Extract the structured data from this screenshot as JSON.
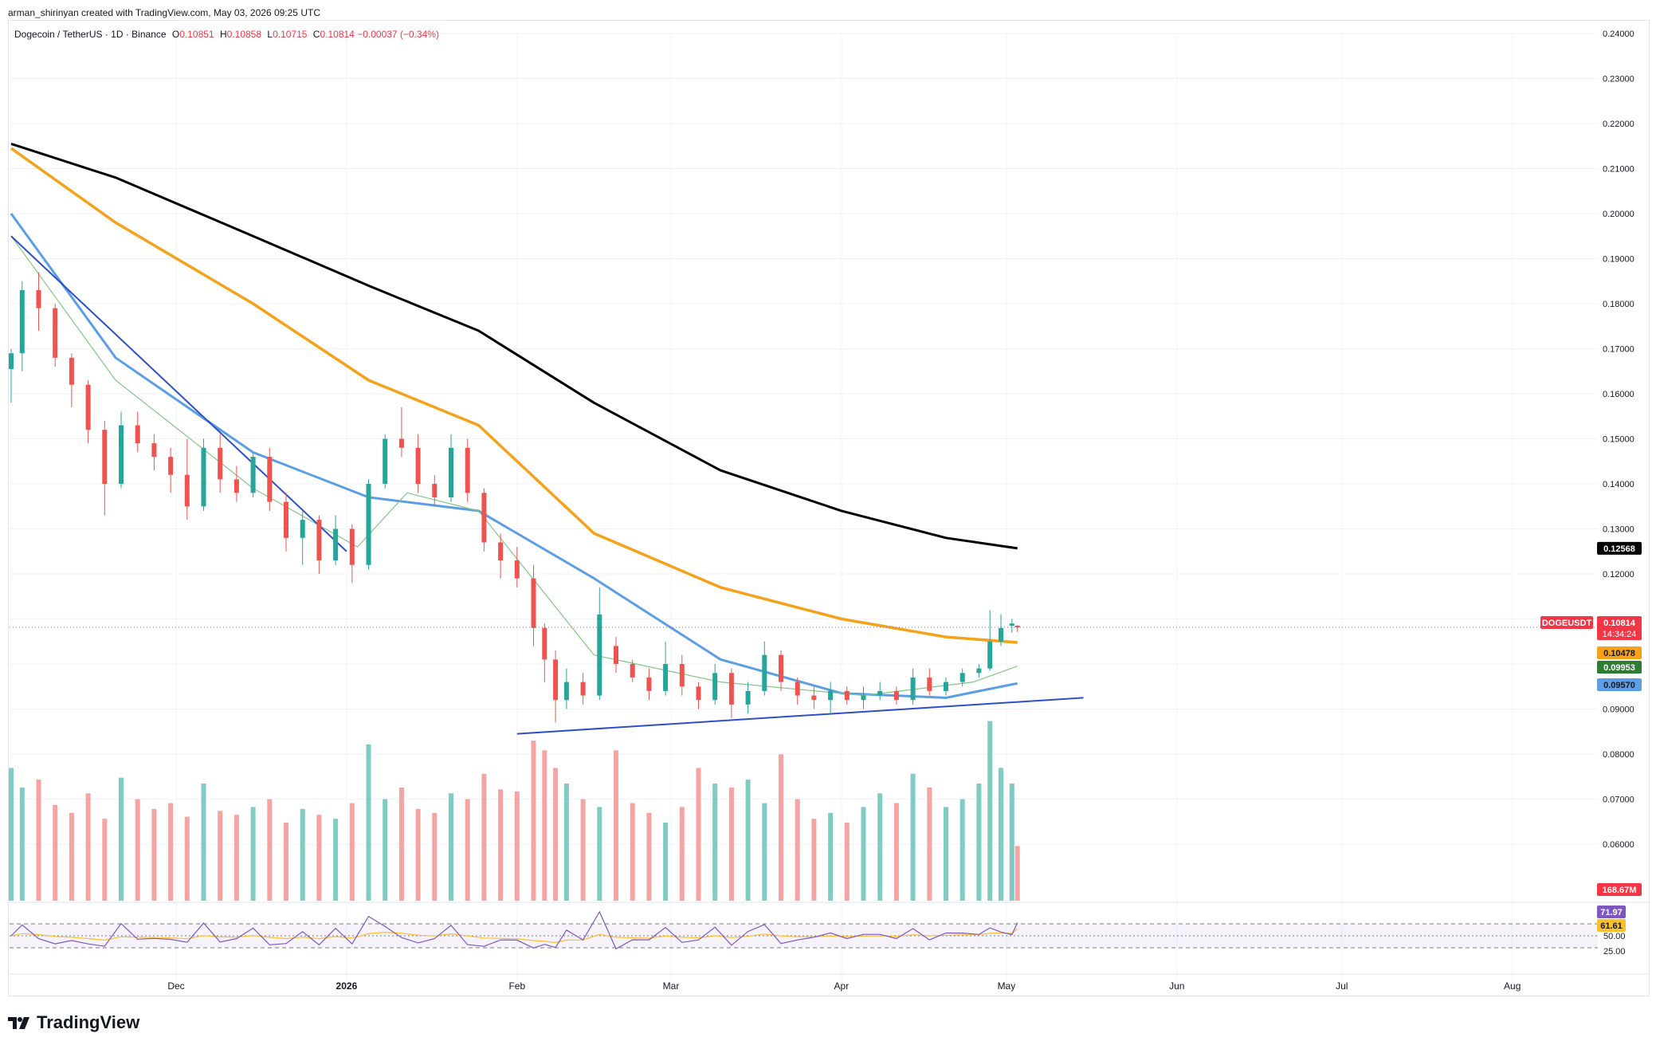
{
  "caption": "arman_shirinyan created with TradingView.com, May 03, 2026 09:25 UTC",
  "legend": {
    "symbol": "Dogecoin / TetherUS · 1D · Binance",
    "o_key": "O",
    "o_val": "0.10851",
    "h_key": "H",
    "h_val": "0.10858",
    "l_key": "L",
    "l_val": "0.10715",
    "c_key": "C",
    "c_val": "0.10814",
    "change": "−0.00037 (−0.34%)"
  },
  "brand": "TradingView",
  "price_axis": {
    "ticks": [
      "0.24000",
      "0.23000",
      "0.22000",
      "0.21000",
      "0.20000",
      "0.19000",
      "0.18000",
      "0.17000",
      "0.16000",
      "0.15000",
      "0.14000",
      "0.13000",
      "0.12000",
      "0.11000",
      "0.10000",
      "0.09000",
      "0.08000",
      "0.07000",
      "0.06000"
    ]
  },
  "price_labels": {
    "ma200": "0.12568",
    "symbol_tag": "DOGEUSDT",
    "last": "0.10814",
    "countdown": "14:34:24",
    "ma100": "0.10478",
    "ma20": "0.09953",
    "ma50": "0.09570",
    "volume": "168.67M"
  },
  "rsi_axis": {
    "ticks": [
      "50.00",
      "25.00"
    ],
    "rsi_value": "71.97",
    "rsi_ma_value": "61.61"
  },
  "time_axis": [
    "Dec",
    "2026",
    "Feb",
    "Mar",
    "Apr",
    "May",
    "Jun",
    "Jul",
    "Aug"
  ],
  "colors": {
    "up": "#26a69a",
    "down": "#ef5350",
    "up_vol": "#80cbc4",
    "down_vol": "#f5a3a3",
    "ma200": "#000000",
    "ma100": "#f5a11a",
    "ma50": "#5b9ee6",
    "ma20": "#81c784",
    "trendline": "#2f4fc8",
    "rsi": "#7e57c2",
    "rsi_ma": "#fbc02d",
    "last_price": "#f23645"
  },
  "chart_data": {
    "type": "candlestick",
    "title": "Dogecoin / TetherUS · 1D · Binance",
    "ylim": [
      0.055,
      0.245
    ],
    "candles": [
      {
        "date": "2025-11-01",
        "o": 0.1655,
        "h": 0.17,
        "l": 0.158,
        "c": 0.169
      },
      {
        "date": "2025-11-03",
        "o": 0.169,
        "h": 0.185,
        "l": 0.165,
        "c": 0.183
      },
      {
        "date": "2025-11-06",
        "o": 0.183,
        "h": 0.187,
        "l": 0.174,
        "c": 0.179
      },
      {
        "date": "2025-11-09",
        "o": 0.179,
        "h": 0.18,
        "l": 0.166,
        "c": 0.168
      },
      {
        "date": "2025-11-12",
        "o": 0.168,
        "h": 0.169,
        "l": 0.157,
        "c": 0.162
      },
      {
        "date": "2025-11-15",
        "o": 0.162,
        "h": 0.163,
        "l": 0.149,
        "c": 0.152
      },
      {
        "date": "2025-11-18",
        "o": 0.152,
        "h": 0.154,
        "l": 0.133,
        "c": 0.14
      },
      {
        "date": "2025-11-21",
        "o": 0.14,
        "h": 0.156,
        "l": 0.139,
        "c": 0.153
      },
      {
        "date": "2025-11-24",
        "o": 0.153,
        "h": 0.156,
        "l": 0.147,
        "c": 0.149
      },
      {
        "date": "2025-11-27",
        "o": 0.149,
        "h": 0.151,
        "l": 0.143,
        "c": 0.146
      },
      {
        "date": "2025-11-30",
        "o": 0.146,
        "h": 0.148,
        "l": 0.138,
        "c": 0.142
      },
      {
        "date": "2025-12-03",
        "o": 0.142,
        "h": 0.15,
        "l": 0.132,
        "c": 0.135
      },
      {
        "date": "2025-12-06",
        "o": 0.135,
        "h": 0.15,
        "l": 0.134,
        "c": 0.148
      },
      {
        "date": "2025-12-09",
        "o": 0.148,
        "h": 0.151,
        "l": 0.138,
        "c": 0.141
      },
      {
        "date": "2025-12-12",
        "o": 0.141,
        "h": 0.144,
        "l": 0.136,
        "c": 0.138
      },
      {
        "date": "2025-12-15",
        "o": 0.138,
        "h": 0.147,
        "l": 0.137,
        "c": 0.146
      },
      {
        "date": "2025-12-18",
        "o": 0.146,
        "h": 0.148,
        "l": 0.134,
        "c": 0.136
      },
      {
        "date": "2025-12-21",
        "o": 0.136,
        "h": 0.138,
        "l": 0.125,
        "c": 0.128
      },
      {
        "date": "2025-12-24",
        "o": 0.128,
        "h": 0.134,
        "l": 0.122,
        "c": 0.132
      },
      {
        "date": "2025-12-27",
        "o": 0.132,
        "h": 0.133,
        "l": 0.12,
        "c": 0.123
      },
      {
        "date": "2025-12-30",
        "o": 0.123,
        "h": 0.133,
        "l": 0.122,
        "c": 0.13
      },
      {
        "date": "2026-01-02",
        "o": 0.13,
        "h": 0.131,
        "l": 0.118,
        "c": 0.122
      },
      {
        "date": "2026-01-05",
        "o": 0.122,
        "h": 0.141,
        "l": 0.121,
        "c": 0.14
      },
      {
        "date": "2026-01-08",
        "o": 0.14,
        "h": 0.151,
        "l": 0.139,
        "c": 0.15
      },
      {
        "date": "2026-01-11",
        "o": 0.15,
        "h": 0.157,
        "l": 0.146,
        "c": 0.148
      },
      {
        "date": "2026-01-14",
        "o": 0.148,
        "h": 0.151,
        "l": 0.138,
        "c": 0.14
      },
      {
        "date": "2026-01-17",
        "o": 0.14,
        "h": 0.142,
        "l": 0.135,
        "c": 0.137
      },
      {
        "date": "2026-01-20",
        "o": 0.137,
        "h": 0.151,
        "l": 0.136,
        "c": 0.148
      },
      {
        "date": "2026-01-23",
        "o": 0.148,
        "h": 0.15,
        "l": 0.136,
        "c": 0.138
      },
      {
        "date": "2026-01-26",
        "o": 0.138,
        "h": 0.139,
        "l": 0.125,
        "c": 0.127
      },
      {
        "date": "2026-01-29",
        "o": 0.127,
        "h": 0.129,
        "l": 0.119,
        "c": 0.123
      },
      {
        "date": "2026-02-01",
        "o": 0.123,
        "h": 0.126,
        "l": 0.117,
        "c": 0.119
      },
      {
        "date": "2026-02-04",
        "o": 0.119,
        "h": 0.122,
        "l": 0.104,
        "c": 0.108
      },
      {
        "date": "2026-02-06",
        "o": 0.108,
        "h": 0.109,
        "l": 0.096,
        "c": 0.101
      },
      {
        "date": "2026-02-08",
        "o": 0.101,
        "h": 0.103,
        "l": 0.087,
        "c": 0.092
      },
      {
        "date": "2026-02-10",
        "o": 0.092,
        "h": 0.099,
        "l": 0.09,
        "c": 0.096
      },
      {
        "date": "2026-02-13",
        "o": 0.096,
        "h": 0.098,
        "l": 0.091,
        "c": 0.093
      },
      {
        "date": "2026-02-16",
        "o": 0.093,
        "h": 0.117,
        "l": 0.092,
        "c": 0.111
      },
      {
        "date": "2026-02-19",
        "o": 0.104,
        "h": 0.106,
        "l": 0.098,
        "c": 0.1
      },
      {
        "date": "2026-02-22",
        "o": 0.1,
        "h": 0.101,
        "l": 0.096,
        "c": 0.097
      },
      {
        "date": "2026-02-25",
        "o": 0.097,
        "h": 0.099,
        "l": 0.092,
        "c": 0.094
      },
      {
        "date": "2026-02-28",
        "o": 0.094,
        "h": 0.105,
        "l": 0.093,
        "c": 0.1
      },
      {
        "date": "2026-03-03",
        "o": 0.1,
        "h": 0.102,
        "l": 0.093,
        "c": 0.095
      },
      {
        "date": "2026-03-06",
        "o": 0.095,
        "h": 0.096,
        "l": 0.09,
        "c": 0.092
      },
      {
        "date": "2026-03-09",
        "o": 0.092,
        "h": 0.1,
        "l": 0.091,
        "c": 0.098
      },
      {
        "date": "2026-03-12",
        "o": 0.098,
        "h": 0.099,
        "l": 0.088,
        "c": 0.091
      },
      {
        "date": "2026-03-15",
        "o": 0.091,
        "h": 0.096,
        "l": 0.089,
        "c": 0.094
      },
      {
        "date": "2026-03-18",
        "o": 0.094,
        "h": 0.105,
        "l": 0.093,
        "c": 0.102
      },
      {
        "date": "2026-03-21",
        "o": 0.102,
        "h": 0.103,
        "l": 0.094,
        "c": 0.096
      },
      {
        "date": "2026-03-24",
        "o": 0.096,
        "h": 0.097,
        "l": 0.091,
        "c": 0.093
      },
      {
        "date": "2026-03-27",
        "o": 0.093,
        "h": 0.095,
        "l": 0.09,
        "c": 0.092
      },
      {
        "date": "2026-03-30",
        "o": 0.092,
        "h": 0.096,
        "l": 0.089,
        "c": 0.094
      },
      {
        "date": "2026-04-02",
        "o": 0.094,
        "h": 0.095,
        "l": 0.091,
        "c": 0.092
      },
      {
        "date": "2026-04-05",
        "o": 0.092,
        "h": 0.095,
        "l": 0.09,
        "c": 0.093
      },
      {
        "date": "2026-04-08",
        "o": 0.093,
        "h": 0.096,
        "l": 0.092,
        "c": 0.094
      },
      {
        "date": "2026-04-11",
        "o": 0.094,
        "h": 0.095,
        "l": 0.091,
        "c": 0.092
      },
      {
        "date": "2026-04-14",
        "o": 0.092,
        "h": 0.099,
        "l": 0.091,
        "c": 0.097
      },
      {
        "date": "2026-04-17",
        "o": 0.097,
        "h": 0.099,
        "l": 0.093,
        "c": 0.094
      },
      {
        "date": "2026-04-20",
        "o": 0.094,
        "h": 0.097,
        "l": 0.093,
        "c": 0.096
      },
      {
        "date": "2026-04-23",
        "o": 0.096,
        "h": 0.099,
        "l": 0.095,
        "c": 0.098
      },
      {
        "date": "2026-04-26",
        "o": 0.098,
        "h": 0.1,
        "l": 0.097,
        "c": 0.099
      },
      {
        "date": "2026-04-28",
        "o": 0.099,
        "h": 0.112,
        "l": 0.0985,
        "c": 0.105
      },
      {
        "date": "2026-04-30",
        "o": 0.105,
        "h": 0.111,
        "l": 0.104,
        "c": 0.108
      },
      {
        "date": "2026-05-02",
        "o": 0.1085,
        "h": 0.11,
        "l": 0.107,
        "c": 0.109
      },
      {
        "date": "2026-05-03",
        "o": 0.10851,
        "h": 0.10858,
        "l": 0.10715,
        "c": 0.10814
      }
    ],
    "volume_last": 168.67,
    "volume": [
      68,
      58,
      62,
      49,
      45,
      55,
      42,
      63,
      52,
      47,
      50,
      43,
      60,
      46,
      44,
      48,
      52,
      40,
      47,
      44,
      42,
      50,
      80,
      52,
      58,
      47,
      45,
      55,
      52,
      65,
      57,
      56,
      82,
      77,
      68,
      60,
      52,
      48,
      77,
      50,
      45,
      40,
      48,
      68,
      60,
      58,
      62,
      50,
      75,
      52,
      42,
      45,
      40,
      48,
      55,
      50,
      65,
      58,
      48,
      52,
      60,
      92,
      68,
      60,
      28
    ],
    "ma_series": [
      {
        "name": "MA 200",
        "value": 0.12568,
        "points": [
          [
            "2025-11-01",
            0.2155
          ],
          [
            "2025-11-20",
            0.208
          ],
          [
            "2025-12-15",
            0.195
          ],
          [
            "2026-01-05",
            0.184
          ],
          [
            "2026-01-25",
            0.174
          ],
          [
            "2026-02-15",
            0.158
          ],
          [
            "2026-03-10",
            0.143
          ],
          [
            "2026-04-01",
            0.134
          ],
          [
            "2026-04-20",
            0.128
          ],
          [
            "2026-05-03",
            0.12568
          ]
        ]
      },
      {
        "name": "MA 100",
        "value": 0.10478,
        "points": [
          [
            "2025-11-01",
            0.2145
          ],
          [
            "2025-11-20",
            0.198
          ],
          [
            "2025-12-15",
            0.18
          ],
          [
            "2026-01-05",
            0.163
          ],
          [
            "2026-01-25",
            0.153
          ],
          [
            "2026-02-15",
            0.129
          ],
          [
            "2026-03-10",
            0.117
          ],
          [
            "2026-04-01",
            0.11
          ],
          [
            "2026-04-20",
            0.106
          ],
          [
            "2026-05-03",
            0.10478
          ]
        ]
      },
      {
        "name": "MA 50",
        "value": 0.0957,
        "points": [
          [
            "2025-11-01",
            0.2
          ],
          [
            "2025-11-20",
            0.168
          ],
          [
            "2025-12-15",
            0.147
          ],
          [
            "2026-01-05",
            0.137
          ],
          [
            "2026-01-25",
            0.134
          ],
          [
            "2026-02-15",
            0.119
          ],
          [
            "2026-03-10",
            0.101
          ],
          [
            "2026-04-01",
            0.0935
          ],
          [
            "2026-04-20",
            0.0925
          ],
          [
            "2026-05-03",
            0.0957
          ]
        ]
      },
      {
        "name": "MA 20",
        "value": 0.09953,
        "points": [
          [
            "2025-11-01",
            0.195
          ],
          [
            "2025-11-20",
            0.163
          ],
          [
            "2025-12-15",
            0.139
          ],
          [
            "2026-01-03",
            0.126
          ],
          [
            "2026-01-12",
            0.138
          ],
          [
            "2026-01-25",
            0.134
          ],
          [
            "2026-02-15",
            0.102
          ],
          [
            "2026-03-10",
            0.096
          ],
          [
            "2026-04-05",
            0.093
          ],
          [
            "2026-04-25",
            0.096
          ],
          [
            "2026-05-03",
            0.09953
          ]
        ]
      }
    ],
    "trendlines": [
      {
        "from": [
          "2025-11-01",
          0.195
        ],
        "to": [
          "2026-01-01",
          0.125
        ]
      },
      {
        "from": [
          "2026-02-01",
          0.0845
        ],
        "to": [
          "2026-05-15",
          0.0925
        ]
      }
    ],
    "rsi": {
      "value": 71.97,
      "ma": 61.61,
      "upper": 70,
      "lower": 30
    },
    "x_ticks": [
      "Dec",
      "2026",
      "Feb",
      "Mar",
      "Apr",
      "May",
      "Jun",
      "Jul",
      "Aug"
    ]
  }
}
